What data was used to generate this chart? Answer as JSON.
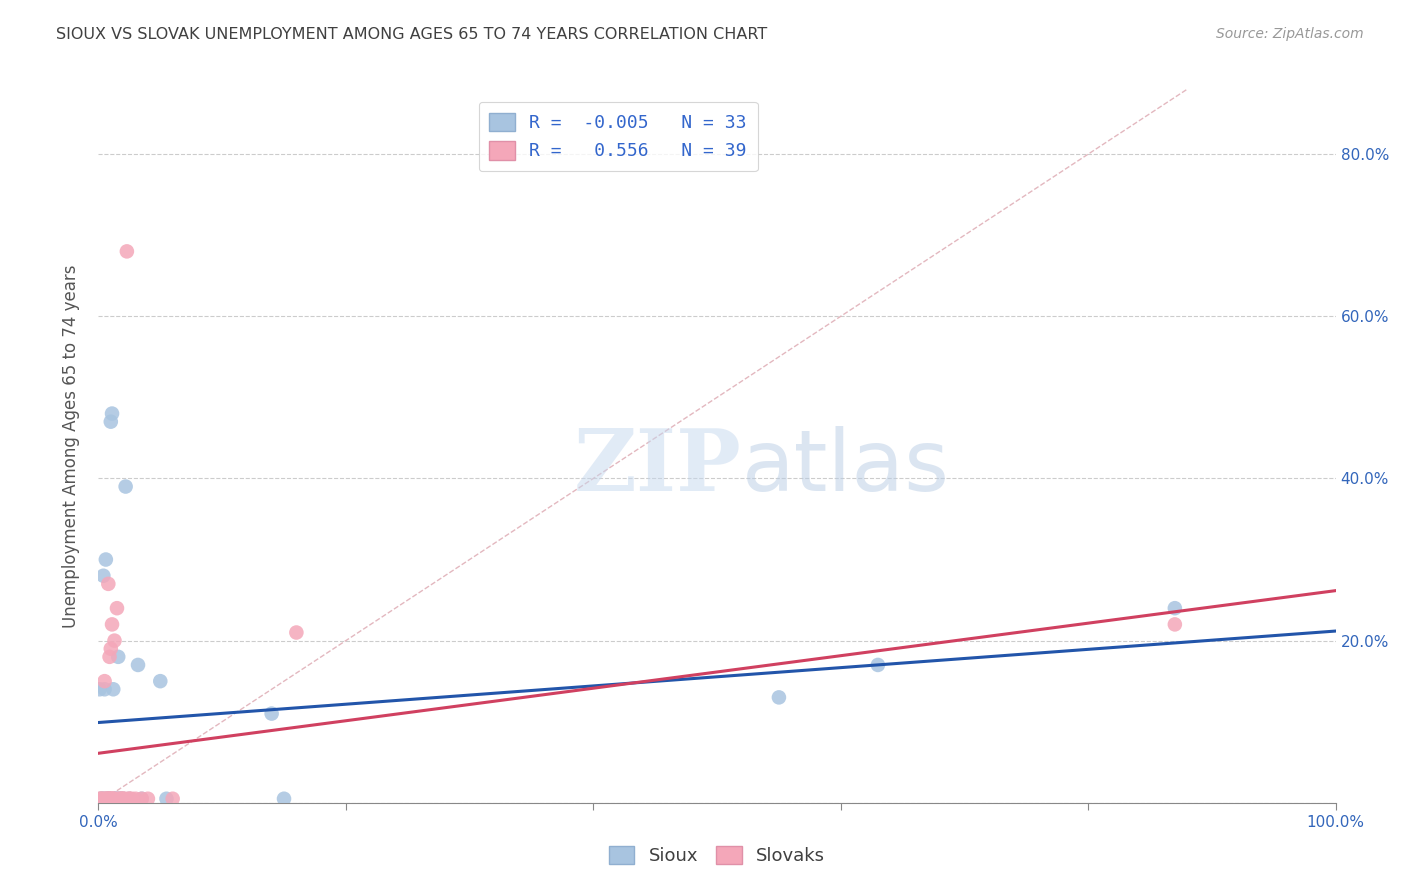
{
  "title": "SIOUX VS SLOVAK UNEMPLOYMENT AMONG AGES 65 TO 74 YEARS CORRELATION CHART",
  "source": "Source: ZipAtlas.com",
  "ylabel": "Unemployment Among Ages 65 to 74 years",
  "xlim": [
    0,
    1.0
  ],
  "ylim": [
    0,
    0.88
  ],
  "xticks": [
    0.0,
    0.2,
    0.4,
    0.6,
    0.8,
    1.0
  ],
  "yticks": [
    0.0,
    0.2,
    0.4,
    0.6,
    0.8
  ],
  "xticklabels": [
    "0.0%",
    "",
    "",
    "",
    "",
    "100.0%"
  ],
  "right_yticklabels": [
    "",
    "20.0%",
    "40.0%",
    "60.0%",
    "80.0%"
  ],
  "sioux_R": -0.005,
  "sioux_N": 33,
  "slovak_R": 0.556,
  "slovak_N": 39,
  "sioux_color": "#a8c4e0",
  "slovak_color": "#f4a7b9",
  "sioux_line_color": "#2255aa",
  "slovak_line_color": "#d04060",
  "identity_line_color": "#e0b0b8",
  "watermark_zip": "ZIP",
  "watermark_atlas": "atlas",
  "sioux_points": [
    [
      0.001,
      0.14
    ],
    [
      0.002,
      0.005
    ],
    [
      0.003,
      0.005
    ],
    [
      0.004,
      0.005
    ],
    [
      0.004,
      0.28
    ],
    [
      0.005,
      0.14
    ],
    [
      0.006,
      0.3
    ],
    [
      0.007,
      0.005
    ],
    [
      0.007,
      0.005
    ],
    [
      0.008,
      0.005
    ],
    [
      0.009,
      0.005
    ],
    [
      0.01,
      0.47
    ],
    [
      0.01,
      0.005
    ],
    [
      0.011,
      0.48
    ],
    [
      0.012,
      0.14
    ],
    [
      0.013,
      0.005
    ],
    [
      0.014,
      0.005
    ],
    [
      0.015,
      0.005
    ],
    [
      0.016,
      0.18
    ],
    [
      0.017,
      0.005
    ],
    [
      0.018,
      0.005
    ],
    [
      0.02,
      0.005
    ],
    [
      0.022,
      0.39
    ],
    [
      0.025,
      0.005
    ],
    [
      0.032,
      0.17
    ],
    [
      0.035,
      0.005
    ],
    [
      0.05,
      0.15
    ],
    [
      0.055,
      0.005
    ],
    [
      0.14,
      0.11
    ],
    [
      0.15,
      0.005
    ],
    [
      0.55,
      0.13
    ],
    [
      0.63,
      0.17
    ],
    [
      0.87,
      0.24
    ]
  ],
  "slovak_points": [
    [
      0.001,
      0.005
    ],
    [
      0.002,
      0.005
    ],
    [
      0.003,
      0.005
    ],
    [
      0.004,
      0.005
    ],
    [
      0.005,
      0.15
    ],
    [
      0.006,
      0.005
    ],
    [
      0.006,
      0.005
    ],
    [
      0.007,
      0.005
    ],
    [
      0.008,
      0.27
    ],
    [
      0.008,
      0.005
    ],
    [
      0.009,
      0.005
    ],
    [
      0.009,
      0.005
    ],
    [
      0.009,
      0.18
    ],
    [
      0.01,
      0.19
    ],
    [
      0.01,
      0.005
    ],
    [
      0.011,
      0.005
    ],
    [
      0.011,
      0.22
    ],
    [
      0.012,
      0.005
    ],
    [
      0.012,
      0.005
    ],
    [
      0.013,
      0.005
    ],
    [
      0.013,
      0.2
    ],
    [
      0.015,
      0.24
    ],
    [
      0.015,
      0.005
    ],
    [
      0.017,
      0.005
    ],
    [
      0.018,
      0.005
    ],
    [
      0.019,
      0.005
    ],
    [
      0.02,
      0.005
    ],
    [
      0.02,
      0.005
    ],
    [
      0.022,
      0.005
    ],
    [
      0.023,
      0.68
    ],
    [
      0.025,
      0.005
    ],
    [
      0.025,
      0.005
    ],
    [
      0.027,
      0.005
    ],
    [
      0.03,
      0.005
    ],
    [
      0.035,
      0.005
    ],
    [
      0.04,
      0.005
    ],
    [
      0.06,
      0.005
    ],
    [
      0.16,
      0.21
    ],
    [
      0.87,
      0.22
    ]
  ]
}
